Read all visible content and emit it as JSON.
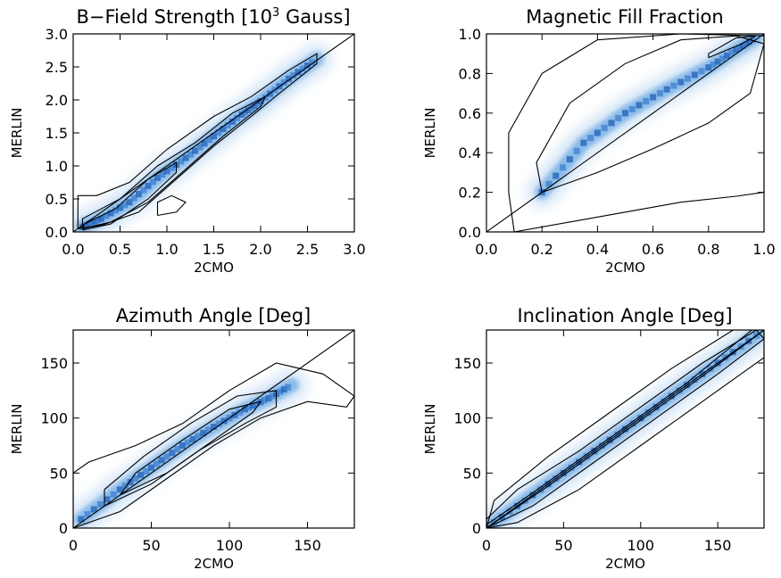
{
  "chart_data": [
    {
      "type": "heatmap",
      "title": "B−Field Strength [10",
      "title_exponent": "3",
      "title_suffix": " Gauss]",
      "xlabel": "2CMO",
      "ylabel": "MERLIN",
      "xlim": [
        0,
        3.0
      ],
      "ylim": [
        0,
        3.0
      ],
      "xticks": [
        "0.0",
        "0.5",
        "1.0",
        "1.5",
        "2.0",
        "2.5",
        "3.0"
      ],
      "yticks": [
        "0.0",
        "0.5",
        "1.0",
        "1.5",
        "2.0",
        "2.5",
        "3.0"
      ],
      "identity_line": true,
      "density_ridge": [
        [
          0.1,
          0.08
        ],
        [
          0.3,
          0.2
        ],
        [
          0.6,
          0.45
        ],
        [
          0.9,
          0.82
        ],
        [
          1.2,
          1.12
        ],
        [
          1.5,
          1.45
        ],
        [
          1.8,
          1.78
        ],
        [
          2.0,
          1.98
        ],
        [
          2.3,
          2.32
        ],
        [
          2.6,
          2.62
        ]
      ],
      "contours": [
        [
          [
            0.05,
            0.05
          ],
          [
            0.3,
            0.1
          ],
          [
            0.7,
            0.3
          ],
          [
            1.1,
            0.8
          ],
          [
            1.5,
            1.3
          ],
          [
            1.9,
            1.75
          ],
          [
            2.2,
            2.1
          ],
          [
            2.6,
            2.55
          ],
          [
            2.6,
            2.7
          ],
          [
            2.3,
            2.45
          ],
          [
            1.9,
            2.05
          ],
          [
            1.5,
            1.75
          ],
          [
            1.0,
            1.25
          ],
          [
            0.6,
            0.75
          ],
          [
            0.25,
            0.55
          ],
          [
            0.05,
            0.55
          ],
          [
            0.05,
            0.05
          ]
        ],
        [
          [
            0.1,
            0.05
          ],
          [
            0.4,
            0.15
          ],
          [
            0.8,
            0.45
          ],
          [
            1.2,
            0.95
          ],
          [
            1.6,
            1.45
          ],
          [
            2.0,
            1.9
          ],
          [
            2.05,
            2.05
          ],
          [
            1.7,
            1.8
          ],
          [
            1.3,
            1.35
          ],
          [
            0.9,
            1.0
          ],
          [
            0.5,
            0.5
          ],
          [
            0.1,
            0.2
          ],
          [
            0.1,
            0.05
          ]
        ],
        [
          [
            0.1,
            0.03
          ],
          [
            0.4,
            0.12
          ],
          [
            0.8,
            0.5
          ],
          [
            1.1,
            0.9
          ],
          [
            1.1,
            1.05
          ],
          [
            0.8,
            0.8
          ],
          [
            0.45,
            0.35
          ],
          [
            0.12,
            0.12
          ],
          [
            0.1,
            0.03
          ]
        ],
        [
          [
            0.9,
            0.25
          ],
          [
            1.1,
            0.3
          ],
          [
            1.2,
            0.45
          ],
          [
            1.05,
            0.55
          ],
          [
            0.9,
            0.45
          ],
          [
            0.9,
            0.25
          ]
        ]
      ]
    },
    {
      "type": "heatmap",
      "title": "Magnetic Fill Fraction",
      "xlabel": "2CMO",
      "ylabel": "MERLIN",
      "xlim": [
        0,
        1.0
      ],
      "ylim": [
        0,
        1.0
      ],
      "xticks": [
        "0.0",
        "0.2",
        "0.4",
        "0.6",
        "0.8",
        "1.0"
      ],
      "yticks": [
        "0.0",
        "0.2",
        "0.4",
        "0.6",
        "0.8",
        "1.0"
      ],
      "identity_line": true,
      "density_ridge": [
        [
          0.2,
          0.2
        ],
        [
          0.35,
          0.45
        ],
        [
          0.5,
          0.6
        ],
        [
          0.65,
          0.72
        ],
        [
          0.8,
          0.83
        ],
        [
          0.9,
          0.92
        ],
        [
          0.97,
          0.98
        ]
      ],
      "contours": [
        [
          [
            0.1,
            0.0
          ],
          [
            0.3,
            0.05
          ],
          [
            0.5,
            0.1
          ],
          [
            0.7,
            0.15
          ],
          [
            0.9,
            0.18
          ],
          [
            1.0,
            0.2
          ],
          [
            1.0,
            0.99
          ],
          [
            0.7,
            1.0
          ],
          [
            0.4,
            0.97
          ],
          [
            0.2,
            0.8
          ],
          [
            0.08,
            0.5
          ],
          [
            0.08,
            0.2
          ],
          [
            0.1,
            0.0
          ]
        ],
        [
          [
            0.2,
            0.2
          ],
          [
            0.4,
            0.3
          ],
          [
            0.6,
            0.42
          ],
          [
            0.8,
            0.55
          ],
          [
            0.95,
            0.7
          ],
          [
            1.0,
            0.95
          ],
          [
            0.9,
            0.99
          ],
          [
            0.7,
            0.97
          ],
          [
            0.5,
            0.85
          ],
          [
            0.3,
            0.65
          ],
          [
            0.18,
            0.35
          ],
          [
            0.2,
            0.2
          ]
        ],
        [
          [
            0.8,
            0.88
          ],
          [
            0.92,
            0.95
          ],
          [
            0.97,
            0.99
          ],
          [
            0.9,
            0.98
          ],
          [
            0.8,
            0.9
          ],
          [
            0.8,
            0.88
          ]
        ]
      ]
    },
    {
      "type": "heatmap",
      "title": "Azimuth Angle [Deg]",
      "xlabel": "2CMO",
      "ylabel": "MERLIN",
      "xlim": [
        0,
        180
      ],
      "ylim": [
        0,
        180
      ],
      "xticks": [
        "0",
        "50",
        "100",
        "150"
      ],
      "yticks": [
        "0",
        "50",
        "100",
        "150"
      ],
      "identity_line": true,
      "density_ridge": [
        [
          5,
          8
        ],
        [
          30,
          35
        ],
        [
          50,
          55
        ],
        [
          70,
          75
        ],
        [
          90,
          92
        ],
        [
          110,
          108
        ],
        [
          125,
          118
        ],
        [
          140,
          130
        ]
      ],
      "contours": [
        [
          [
            0,
            0
          ],
          [
            30,
            15
          ],
          [
            60,
            45
          ],
          [
            90,
            75
          ],
          [
            120,
            100
          ],
          [
            150,
            115
          ],
          [
            175,
            110
          ],
          [
            180,
            120
          ],
          [
            160,
            140
          ],
          [
            130,
            150
          ],
          [
            100,
            125
          ],
          [
            70,
            95
          ],
          [
            40,
            75
          ],
          [
            10,
            60
          ],
          [
            0,
            50
          ],
          [
            0,
            0
          ]
        ],
        [
          [
            20,
            20
          ],
          [
            50,
            40
          ],
          [
            80,
            70
          ],
          [
            110,
            95
          ],
          [
            130,
            110
          ],
          [
            130,
            125
          ],
          [
            105,
            120
          ],
          [
            75,
            95
          ],
          [
            45,
            65
          ],
          [
            20,
            35
          ],
          [
            20,
            20
          ]
        ],
        [
          [
            30,
            30
          ],
          [
            60,
            50
          ],
          [
            90,
            80
          ],
          [
            115,
            105
          ],
          [
            120,
            115
          ],
          [
            100,
            108
          ],
          [
            70,
            80
          ],
          [
            40,
            50
          ],
          [
            30,
            30
          ]
        ]
      ]
    },
    {
      "type": "heatmap",
      "title": "Inclination Angle [Deg]",
      "xlabel": "2CMO",
      "ylabel": "MERLIN",
      "xlim": [
        0,
        180
      ],
      "ylim": [
        0,
        180
      ],
      "xticks": [
        "0",
        "50",
        "100",
        "150"
      ],
      "yticks": [
        "0",
        "50",
        "100",
        "150"
      ],
      "identity_line": true,
      "density_ridge": [
        [
          0,
          0
        ],
        [
          30,
          30
        ],
        [
          60,
          60
        ],
        [
          90,
          90
        ],
        [
          120,
          120
        ],
        [
          150,
          150
        ],
        [
          180,
          180
        ]
      ],
      "contours": [
        [
          [
            0,
            0
          ],
          [
            20,
            5
          ],
          [
            60,
            35
          ],
          [
            100,
            75
          ],
          [
            140,
            115
          ],
          [
            180,
            155
          ],
          [
            180,
            180
          ],
          [
            160,
            180
          ],
          [
            120,
            145
          ],
          [
            80,
            105
          ],
          [
            40,
            65
          ],
          [
            5,
            25
          ],
          [
            0,
            0
          ]
        ],
        [
          [
            0,
            0
          ],
          [
            30,
            20
          ],
          [
            70,
            60
          ],
          [
            110,
            100
          ],
          [
            150,
            140
          ],
          [
            180,
            172
          ],
          [
            175,
            180
          ],
          [
            140,
            150
          ],
          [
            100,
            110
          ],
          [
            60,
            70
          ],
          [
            20,
            35
          ],
          [
            0,
            8
          ],
          [
            0,
            0
          ]
        ],
        [
          [
            0,
            0
          ],
          [
            40,
            38
          ],
          [
            90,
            88
          ],
          [
            140,
            138
          ],
          [
            180,
            180
          ],
          [
            172,
            180
          ],
          [
            130,
            132
          ],
          [
            80,
            82
          ],
          [
            30,
            32
          ],
          [
            0,
            3
          ],
          [
            0,
            0
          ]
        ]
      ]
    }
  ]
}
